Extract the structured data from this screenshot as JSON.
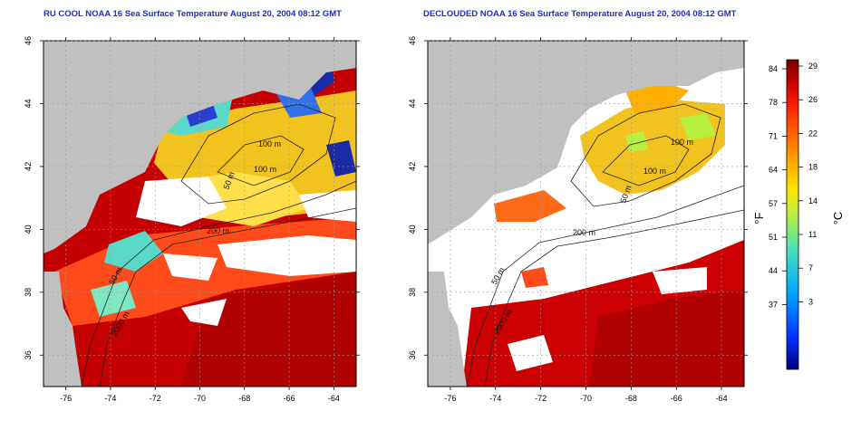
{
  "titles": {
    "left": "RU COOL NOAA 16 Sea Surface Temperature August 20, 2004 08:12 GMT",
    "right": "DECLOUDED NOAA 16 Sea Surface Temperature August 20, 2004 08:12 GMT"
  },
  "x_ticks": [
    "-76",
    "-74",
    "-72",
    "-70",
    "-68",
    "-66",
    "-64"
  ],
  "y_ticks": [
    "36",
    "38",
    "40",
    "42",
    "44",
    "46"
  ],
  "x_tick_values": [
    -76,
    -74,
    -72,
    -70,
    -68,
    -66,
    -64
  ],
  "y_tick_values": [
    36,
    38,
    40,
    42,
    44,
    46
  ],
  "lon_range": [
    -77,
    -63
  ],
  "lat_range": [
    35,
    46
  ],
  "contours": {
    "left": [
      "100 m",
      "100 m",
      "50 m",
      "200 m",
      "50 m",
      "2000 m"
    ],
    "right": [
      "100 m",
      "100 m",
      "50 m",
      "200 m",
      "50 m",
      "2000 m"
    ]
  },
  "colorbar": {
    "f_label": "°F",
    "c_label": "°C",
    "f_ticks": [
      "84",
      "78",
      "71",
      "64",
      "57",
      "51",
      "44",
      "37"
    ],
    "c_ticks": [
      "29",
      "26",
      "22",
      "18",
      "14",
      "11",
      "7",
      "3"
    ],
    "colors": [
      "#7a0000",
      "#c40000",
      "#ff1f00",
      "#ff6a00",
      "#ffb000",
      "#ffe600",
      "#b8f040",
      "#40e0c0",
      "#00a8ff",
      "#0040ff",
      "#000080"
    ]
  },
  "colors": {
    "land": "#c0c0c0",
    "cloud": "#ffffff",
    "ocean_warm": "#cc0000",
    "ocean_hot": "#b00000",
    "ocean_orange": "#ff4a1a",
    "shelf_yellow": "#f2c21e",
    "cool_cyan": "#5ad9c8",
    "cold_blue": "#1c2aa8",
    "title_blue": "#1f2fbf"
  }
}
